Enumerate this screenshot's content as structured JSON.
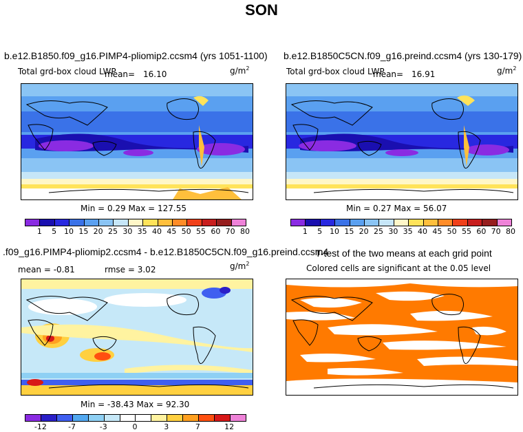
{
  "title": "SON",
  "panels": {
    "top_left": {
      "case": "b.e12.B1850.f09_g16.PIMP4-pliomip2.ccsm4 (yrs 1051-1100)",
      "field_label": "Total grd-box cloud LWP",
      "mean_label": "mean=",
      "mean_value": "16.10",
      "units": "g/m",
      "units_exp": "2",
      "minmax": "Min =    0.29 Max = 127.55"
    },
    "top_right": {
      "case": "b.e12.B1850C5CN.f09_g16.preind.ccsm4 (yrs 130-179)",
      "field_label": "Total grd-box cloud LWP",
      "mean_label": "mean=",
      "mean_value": "16.91",
      "units": "g/m",
      "units_exp": "2",
      "minmax": "Min =    0.27 Max =  56.07"
    },
    "bottom_left": {
      "case": ".f09_g16.PIMP4-pliomip2.ccsm4 - b.e12.B1850C5CN.f09_g16.preind.ccsm4",
      "mean_text": "mean =  -0.81",
      "rmse_text": "rmse =    3.02",
      "units": "g/m",
      "units_exp": "2",
      "minmax": "Min = -38.43 Max =  92.30"
    },
    "bottom_right": {
      "title": "T-test of the two means at each grid point",
      "subtitle": "Colored cells are significant at the 0.05 level"
    }
  },
  "legend_abs": {
    "colors": [
      "#8a2be2",
      "#1a0fb0",
      "#2828e0",
      "#3a72e8",
      "#5aa0f0",
      "#8ac4f4",
      "#c6e6f8",
      "#fff7c8",
      "#ffe35a",
      "#ffbf3c",
      "#ff8c28",
      "#f0401a",
      "#c81e1e",
      "#961e1e",
      "#ee82d8"
    ],
    "ticks": [
      "1",
      "5",
      "10",
      "15",
      "20",
      "25",
      "30",
      "35",
      "40",
      "45",
      "50",
      "55",
      "60",
      "70",
      "80"
    ]
  },
  "legend_diff": {
    "colors": [
      "#8a2be2",
      "#2a1fc8",
      "#3f5ff0",
      "#52a8f0",
      "#8ed0f4",
      "#c6e8f8",
      "#ffffff",
      "#ffffff",
      "#fff3a0",
      "#ffd040",
      "#ffa020",
      "#ff5010",
      "#d81818",
      "#ee82d8"
    ],
    "ticks": [
      "-12",
      "-7",
      "-3",
      "0",
      "3",
      "7",
      "12"
    ]
  },
  "colors": {
    "ttest_fill": "#ff7a00"
  }
}
